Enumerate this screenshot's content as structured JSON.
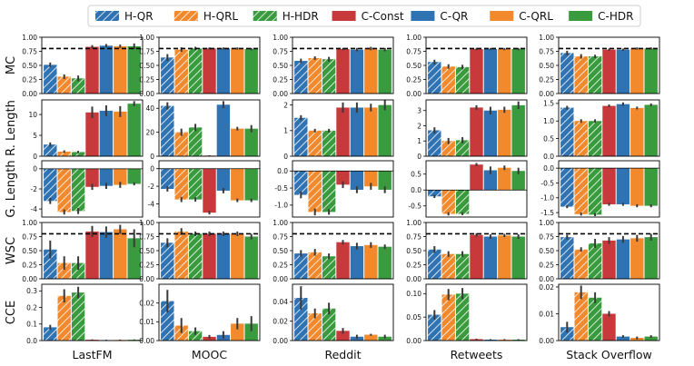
{
  "chart_data": {
    "type": "bar",
    "layout": "grid of bar-chart panels, 5 metric rows x 5 dataset columns",
    "legend": {
      "placement": "top-center",
      "entries": [
        {
          "name": "H-QR",
          "color": "#2f73b3",
          "hatch": true
        },
        {
          "name": "H-QRL",
          "color": "#f2892c",
          "hatch": true
        },
        {
          "name": "H-HDR",
          "color": "#3a9a3e",
          "hatch": true
        },
        {
          "name": "C-Const",
          "color": "#c8393b",
          "hatch": false
        },
        {
          "name": "C-QR",
          "color": "#2f73b3",
          "hatch": false
        },
        {
          "name": "C-QRL",
          "color": "#f2892c",
          "hatch": false
        },
        {
          "name": "C-HDR",
          "color": "#3a9a3e",
          "hatch": false
        }
      ]
    },
    "datasets": [
      "LastFM",
      "MOOC",
      "Reddit",
      "Retweets",
      "Stack Overflow"
    ],
    "metrics": [
      {
        "label": "MC",
        "reference_line": 0.8,
        "panels": [
          {
            "ylim": [
              0,
              1
            ],
            "ticks": [
              "0.00",
              "0.25",
              "0.50",
              "0.75",
              "1.00"
            ],
            "values": [
              0.51,
              0.3,
              0.27,
              0.83,
              0.85,
              0.84,
              0.84
            ],
            "errors": [
              0.04,
              0.04,
              0.05,
              0.03,
              0.03,
              0.03,
              0.05
            ]
          },
          {
            "ylim": [
              0,
              1
            ],
            "ticks": [
              "0.00",
              "0.25",
              "0.50",
              "0.75",
              "1.00"
            ],
            "values": [
              0.64,
              0.78,
              0.8,
              0.8,
              0.8,
              0.8,
              0.79
            ],
            "errors": [
              0.06,
              0.04,
              0.03,
              0.02,
              0.02,
              0.02,
              0.02
            ]
          },
          {
            "ylim": [
              0,
              1
            ],
            "ticks": [
              "0.00",
              "0.25",
              "0.50",
              "0.75",
              "1.00"
            ],
            "values": [
              0.58,
              0.63,
              0.61,
              0.79,
              0.78,
              0.8,
              0.78
            ],
            "errors": [
              0.04,
              0.03,
              0.04,
              0.02,
              0.03,
              0.03,
              0.03
            ]
          },
          {
            "ylim": [
              0,
              1
            ],
            "ticks": [
              "0.00",
              "0.25",
              "0.50",
              "0.75",
              "1.00"
            ],
            "values": [
              0.56,
              0.48,
              0.47,
              0.79,
              0.79,
              0.79,
              0.79
            ],
            "errors": [
              0.04,
              0.04,
              0.04,
              0.02,
              0.02,
              0.02,
              0.02
            ]
          },
          {
            "ylim": [
              0,
              1
            ],
            "ticks": [
              "0.00",
              "0.25",
              "0.50",
              "0.75",
              "1.00"
            ],
            "values": [
              0.72,
              0.66,
              0.66,
              0.78,
              0.78,
              0.8,
              0.8
            ],
            "errors": [
              0.04,
              0.04,
              0.03,
              0.02,
              0.02,
              0.02,
              0.02
            ]
          }
        ]
      },
      {
        "label": "R. Length",
        "reference_line": null,
        "panels": [
          {
            "ylim": [
              0,
              13.5
            ],
            "ticks": [
              "0",
              "5",
              "10"
            ],
            "values": [
              2.8,
              1.1,
              1.0,
              10.5,
              10.9,
              10.7,
              12.6
            ],
            "errors": [
              0.5,
              0.3,
              0.3,
              1.4,
              1.3,
              1.3,
              0.6
            ]
          },
          {
            "ylim": [
              0,
              47
            ],
            "ticks": [
              "0",
              "20",
              "40"
            ],
            "values": [
              42.0,
              20.0,
              24.0,
              0.5,
              43.0,
              23.0,
              23.0
            ],
            "errors": [
              3.0,
              3.0,
              3.0,
              0.3,
              3.0,
              1.5,
              3.0
            ]
          },
          {
            "ylim": [
              0,
              2.2
            ],
            "ticks": [
              "0",
              "1",
              "2"
            ],
            "values": [
              1.5,
              1.0,
              1.0,
              1.9,
              1.9,
              1.9,
              2.0
            ],
            "errors": [
              0.1,
              0.07,
              0.07,
              0.2,
              0.2,
              0.15,
              0.2
            ]
          },
          {
            "ylim": [
              0,
              3.7
            ],
            "ticks": [
              "0",
              "1",
              "2",
              "3"
            ],
            "values": [
              1.7,
              1.0,
              1.05,
              3.2,
              3.0,
              3.05,
              3.35
            ],
            "errors": [
              0.2,
              0.2,
              0.2,
              0.15,
              0.25,
              0.2,
              0.25
            ]
          },
          {
            "ylim": [
              0,
              1.6
            ],
            "ticks": [
              "0.0",
              "0.5",
              "1.0",
              "1.5"
            ],
            "values": [
              1.38,
              1.0,
              1.0,
              1.43,
              1.48,
              1.37,
              1.46
            ],
            "errors": [
              0.05,
              0.05,
              0.05,
              0.04,
              0.05,
              0.04,
              0.04
            ]
          }
        ]
      },
      {
        "label": "G. Length",
        "reference_line": null,
        "panels": [
          {
            "ylim": [
              -4.8,
              0.8
            ],
            "ticks": [
              "-4",
              "-2",
              "0"
            ],
            "values": [
              -3.2,
              -4.3,
              -4.2,
              -1.8,
              -1.7,
              -1.6,
              -1.5
            ],
            "errors": [
              0.3,
              0.25,
              0.3,
              0.3,
              0.3,
              0.3,
              0.15
            ]
          },
          {
            "ylim": [
              -5.5,
              0.9
            ],
            "ticks": [
              "-4",
              "-2",
              "0"
            ],
            "values": [
              -2.3,
              -3.5,
              -3.5,
              -5.0,
              -2.5,
              -3.6,
              -3.6
            ],
            "errors": [
              0.3,
              0.3,
              0.25,
              0.2,
              0.3,
              0.2,
              0.2
            ]
          },
          {
            "ylim": [
              -1.35,
              0.3
            ],
            "ticks": [
              "-1.0",
              "-0.5",
              "0.0"
            ],
            "values": [
              -0.7,
              -1.2,
              -1.2,
              -0.4,
              -0.55,
              -0.45,
              -0.55
            ],
            "errors": [
              0.1,
              0.1,
              0.08,
              0.1,
              0.1,
              0.1,
              0.1
            ]
          },
          {
            "ylim": [
              -0.85,
              0.92
            ],
            "ticks": [
              "-0.5",
              "0.0",
              "0.5"
            ],
            "values": [
              -0.2,
              -0.75,
              -0.75,
              0.8,
              0.62,
              0.7,
              0.6
            ],
            "errors": [
              0.05,
              0.05,
              0.04,
              0.05,
              0.12,
              0.07,
              0.1
            ]
          },
          {
            "ylim": [
              -1.65,
              0.25
            ],
            "ticks": [
              "-1.5",
              "-1.0",
              "-0.5",
              "0.0"
            ],
            "values": [
              -1.3,
              -1.55,
              -1.57,
              -1.22,
              -1.22,
              -1.27,
              -1.27
            ],
            "errors": [
              0.05,
              0.05,
              0.05,
              0.05,
              0.05,
              0.05,
              0.05
            ]
          }
        ]
      },
      {
        "label": "WSC",
        "reference_line": 0.8,
        "panels": [
          {
            "ylim": [
              0,
              1
            ],
            "ticks": [
              "0.00",
              "0.25",
              "0.50",
              "0.75",
              "1.00"
            ],
            "values": [
              0.52,
              0.28,
              0.28,
              0.84,
              0.83,
              0.88,
              0.72
            ],
            "errors": [
              0.16,
              0.12,
              0.12,
              0.1,
              0.1,
              0.08,
              0.16
            ]
          },
          {
            "ylim": [
              0,
              1
            ],
            "ticks": [
              "0.00",
              "0.25",
              "0.50",
              "0.75",
              "1.00"
            ],
            "values": [
              0.64,
              0.84,
              0.8,
              0.8,
              0.8,
              0.8,
              0.75
            ],
            "errors": [
              0.08,
              0.06,
              0.04,
              0.04,
              0.04,
              0.04,
              0.05
            ]
          },
          {
            "ylim": [
              0,
              1
            ],
            "ticks": [
              "0.00",
              "0.25",
              "0.50",
              "0.75",
              "1.00"
            ],
            "values": [
              0.45,
              0.47,
              0.4,
              0.65,
              0.58,
              0.6,
              0.57
            ],
            "errors": [
              0.06,
              0.06,
              0.05,
              0.04,
              0.06,
              0.05,
              0.04
            ]
          },
          {
            "ylim": [
              0,
              1
            ],
            "ticks": [
              "0.00",
              "0.25",
              "0.50",
              "0.75",
              "1.00"
            ],
            "values": [
              0.52,
              0.44,
              0.44,
              0.78,
              0.75,
              0.77,
              0.75
            ],
            "errors": [
              0.06,
              0.05,
              0.05,
              0.03,
              0.04,
              0.03,
              0.04
            ]
          },
          {
            "ylim": [
              0,
              1
            ],
            "ticks": [
              "0.00",
              "0.25",
              "0.50",
              "0.75",
              "1.00"
            ],
            "values": [
              0.74,
              0.52,
              0.63,
              0.68,
              0.7,
              0.72,
              0.74
            ],
            "errors": [
              0.04,
              0.04,
              0.08,
              0.06,
              0.06,
              0.06,
              0.06
            ]
          }
        ]
      },
      {
        "label": "CCE",
        "reference_line": null,
        "panels": [
          {
            "ylim": [
              0,
              0.34
            ],
            "ticks": [
              "0.0",
              "0.1",
              "0.2",
              "0.3"
            ],
            "values": [
              0.08,
              0.27,
              0.29,
              0.005,
              0.003,
              0.004,
              0.005
            ],
            "errors": [
              0.015,
              0.04,
              0.035,
              0.002,
              0.002,
              0.002,
              0.002
            ]
          },
          {
            "ylim": [
              0,
              0.03
            ],
            "ticks": [
              "0.00",
              "0.01",
              "0.02"
            ],
            "values": [
              0.021,
              0.008,
              0.005,
              0.002,
              0.003,
              0.009,
              0.009
            ],
            "errors": [
              0.006,
              0.004,
              0.002,
              0.001,
              0.002,
              0.003,
              0.004
            ]
          },
          {
            "ylim": [
              0,
              0.058
            ],
            "ticks": [
              "0.00",
              "0.02",
              "0.04"
            ],
            "values": [
              0.044,
              0.028,
              0.033,
              0.01,
              0.004,
              0.006,
              0.004
            ],
            "errors": [
              0.012,
              0.005,
              0.006,
              0.003,
              0.002,
              0.001,
              0.002
            ]
          },
          {
            "ylim": [
              0,
              0.12
            ],
            "ticks": [
              "0.00",
              "0.05",
              "0.10"
            ],
            "values": [
              0.055,
              0.098,
              0.1,
              0.003,
              0.002,
              0.002,
              0.002
            ],
            "errors": [
              0.01,
              0.012,
              0.012,
              0.001,
              0.001,
              0.001,
              0.001
            ]
          },
          {
            "ylim": [
              0,
              0.021
            ],
            "ticks": [
              "0.00",
              "0.01",
              "0.02"
            ],
            "values": [
              0.005,
              0.018,
              0.016,
              0.01,
              0.0015,
              0.001,
              0.0015
            ],
            "errors": [
              0.002,
              0.0025,
              0.002,
              0.001,
              0.0005,
              0.0005,
              0.0005
            ]
          }
        ]
      }
    ]
  }
}
